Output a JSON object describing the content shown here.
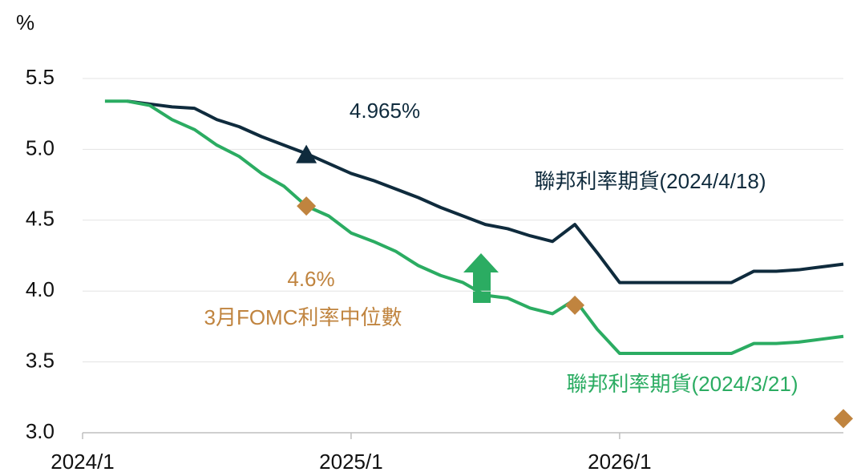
{
  "chart_data": {
    "type": "line",
    "y_label": "%",
    "x": [
      "2024/2",
      "2024/3",
      "2024/4",
      "2024/5",
      "2024/6",
      "2024/7",
      "2024/8",
      "2024/9",
      "2024/10",
      "2024/11",
      "2024/12",
      "2025/1",
      "2025/2",
      "2025/3",
      "2025/4",
      "2025/5",
      "2025/6",
      "2025/7",
      "2025/8",
      "2025/9",
      "2025/10",
      "2025/11",
      "2025/12",
      "2026/1",
      "2026/2",
      "2026/3",
      "2026/4",
      "2026/5",
      "2026/6",
      "2026/7",
      "2026/8",
      "2026/9",
      "2026/10",
      "2026/11"
    ],
    "xlim": [
      "2024/1",
      "2026/11"
    ],
    "xticks": [
      "2024/1",
      "2025/1",
      "2026/1"
    ],
    "ylim": [
      3,
      5.5
    ],
    "yticks": [
      {
        "value": 3,
        "label": "3.0"
      },
      3.5,
      {
        "value": 4,
        "label": "4.0"
      },
      4.5,
      {
        "value": 5,
        "label": "5.0"
      },
      5.5
    ],
    "grid": true,
    "series": [
      {
        "name": "聯邦利率期貨(2024/4/18)",
        "color": "#0f2b3d",
        "values": [
          null,
          5.34,
          5.32,
          5.3,
          5.29,
          5.21,
          5.16,
          5.09,
          5.03,
          4.97,
          4.9,
          4.83,
          4.78,
          4.72,
          4.66,
          4.59,
          4.53,
          4.47,
          4.44,
          4.39,
          4.35,
          4.47,
          4.27,
          4.06,
          4.06,
          4.06,
          4.06,
          4.06,
          4.06,
          4.14,
          4.14,
          4.15,
          4.17,
          4.19
        ]
      },
      {
        "name": "聯邦利率期貨(2024/3/21)",
        "color": "#2bac62",
        "values": [
          5.34,
          5.34,
          5.31,
          5.21,
          5.14,
          5.03,
          4.95,
          4.83,
          4.74,
          4.6,
          4.53,
          4.41,
          4.35,
          4.28,
          4.18,
          4.11,
          4.06,
          3.97,
          3.95,
          3.88,
          3.84,
          3.94,
          3.73,
          3.56,
          3.56,
          3.56,
          3.56,
          3.56,
          3.56,
          3.63,
          3.63,
          3.64,
          3.66,
          3.68
        ]
      }
    ],
    "marker": {
      "x": "2024/11",
      "value": 4.965,
      "label": "4.965%",
      "color": "#0f2b3d"
    },
    "fomc": {
      "name": "3月FOMC利率中位數",
      "color": "#c0843f",
      "x": [
        "2024/11",
        "2025/11",
        "2026/11"
      ],
      "values": [
        4.6,
        3.9,
        3.1
      ],
      "value_labels": [
        "4.6%",
        null,
        null
      ]
    }
  }
}
